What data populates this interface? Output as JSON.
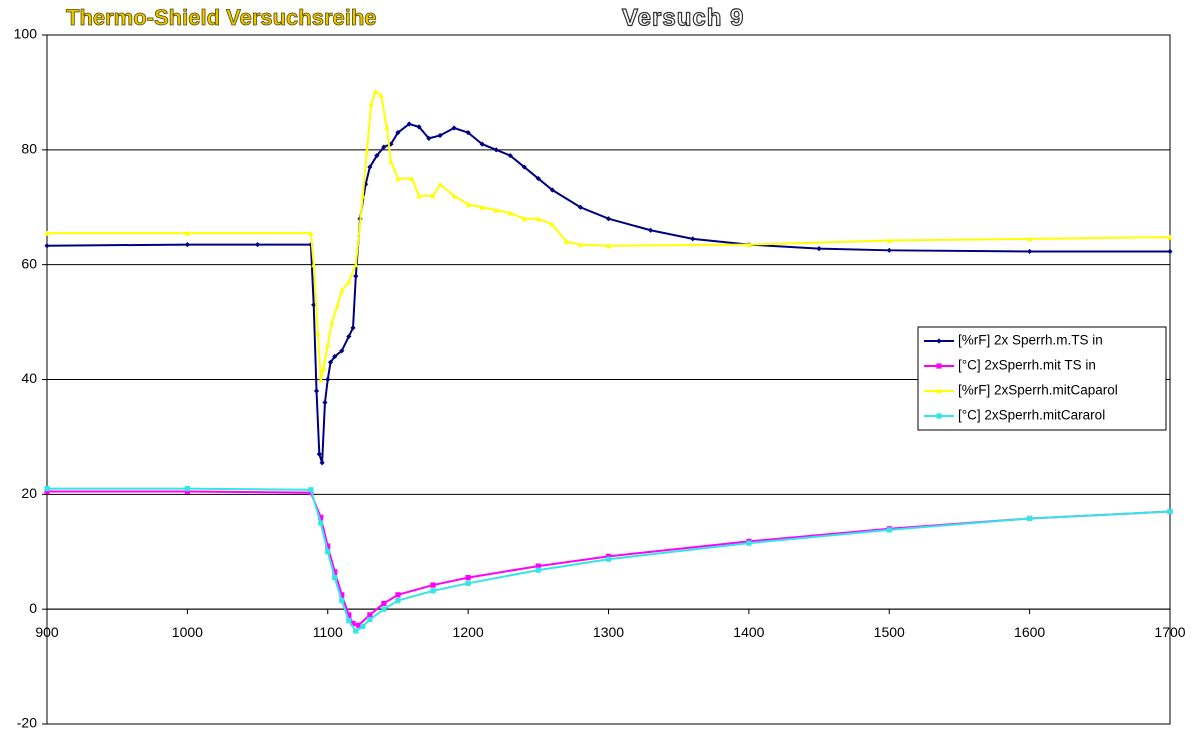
{
  "chart_data": {
    "type": "line",
    "title": "Thermo-Shield Versuchsreihe",
    "subtitle": "Versuch 9",
    "xlim": [
      900,
      1700
    ],
    "xticks": [
      900,
      1000,
      1100,
      1200,
      1300,
      1400,
      1500,
      1600,
      1700
    ],
    "ylim": [
      -20,
      100
    ],
    "yticks": [
      -20,
      0,
      20,
      40,
      60,
      80,
      100
    ],
    "grid": true,
    "legend": "right",
    "series": [
      {
        "name": "[%rF] 2x Sperrh.m.TS in",
        "color": "#000080",
        "marker": "diamond",
        "x": [
          900,
          1000,
          1050,
          1088,
          1090,
          1092,
          1094,
          1096,
          1098,
          1100,
          1102,
          1105,
          1110,
          1115,
          1118,
          1120,
          1123,
          1127,
          1130,
          1135,
          1140,
          1145,
          1150,
          1158,
          1165,
          1172,
          1180,
          1190,
          1200,
          1210,
          1220,
          1230,
          1240,
          1250,
          1260,
          1280,
          1300,
          1330,
          1360,
          1400,
          1450,
          1500,
          1600,
          1700
        ],
        "values": [
          63.3,
          63.5,
          63.5,
          63.5,
          53,
          38,
          27,
          25.5,
          36,
          40,
          43,
          44,
          45,
          47.5,
          49,
          58,
          68,
          74,
          77,
          79,
          80.5,
          81,
          83,
          84.5,
          84,
          82,
          82.5,
          83.8,
          83,
          81,
          80,
          79,
          77,
          75,
          73,
          70,
          68,
          66,
          64.5,
          63.5,
          62.8,
          62.5,
          62.3,
          62.3
        ]
      },
      {
        "name": "[°C] 2xSperrh.mit TS in",
        "color": "#ff00ff",
        "marker": "square",
        "x": [
          900,
          1000,
          1088,
          1095,
          1100,
          1105,
          1110,
          1115,
          1118,
          1122,
          1130,
          1140,
          1150,
          1175,
          1200,
          1250,
          1300,
          1400,
          1500,
          1600,
          1700
        ],
        "values": [
          20.5,
          20.5,
          20.3,
          16,
          11,
          6.5,
          2.5,
          -1,
          -2.5,
          -2.8,
          -1,
          1,
          2.5,
          4.2,
          5.5,
          7.5,
          9.2,
          11.8,
          14,
          15.8,
          17
        ]
      },
      {
        "name": "[%rF] 2xSperrh.mitCaparol",
        "color": "#ffff00",
        "marker": "triangle",
        "x": [
          900,
          1000,
          1088,
          1090,
          1093,
          1095,
          1097,
          1100,
          1103,
          1107,
          1110,
          1115,
          1120,
          1125,
          1128,
          1131,
          1134,
          1138,
          1142,
          1145,
          1150,
          1160,
          1165,
          1175,
          1180,
          1190,
          1200,
          1210,
          1220,
          1230,
          1240,
          1250,
          1260,
          1270,
          1280,
          1300,
          1400,
          1500,
          1600,
          1700
        ],
        "values": [
          65.5,
          65.5,
          65.5,
          60,
          48,
          40,
          42,
          46,
          50,
          53,
          55.5,
          57,
          60,
          72,
          80,
          88,
          90.2,
          89.5,
          84,
          78,
          75,
          75,
          72,
          72,
          74,
          72,
          70.5,
          70,
          69.5,
          69,
          68,
          68,
          67,
          64,
          63.5,
          63.3,
          63.5,
          64.2,
          64.5,
          64.8
        ]
      },
      {
        "name": "[°C] 2xSperrh.mitCararol",
        "color": "#33e6e6",
        "marker": "square",
        "x": [
          900,
          1000,
          1088,
          1095,
          1100,
          1105,
          1110,
          1115,
          1120,
          1125,
          1130,
          1140,
          1150,
          1175,
          1200,
          1250,
          1300,
          1400,
          1500,
          1600,
          1700
        ],
        "values": [
          21,
          21,
          20.8,
          15,
          10,
          5.5,
          1.5,
          -2,
          -3.8,
          -3,
          -1.8,
          0,
          1.5,
          3.2,
          4.5,
          6.8,
          8.7,
          11.5,
          13.8,
          15.8,
          17
        ]
      }
    ]
  }
}
